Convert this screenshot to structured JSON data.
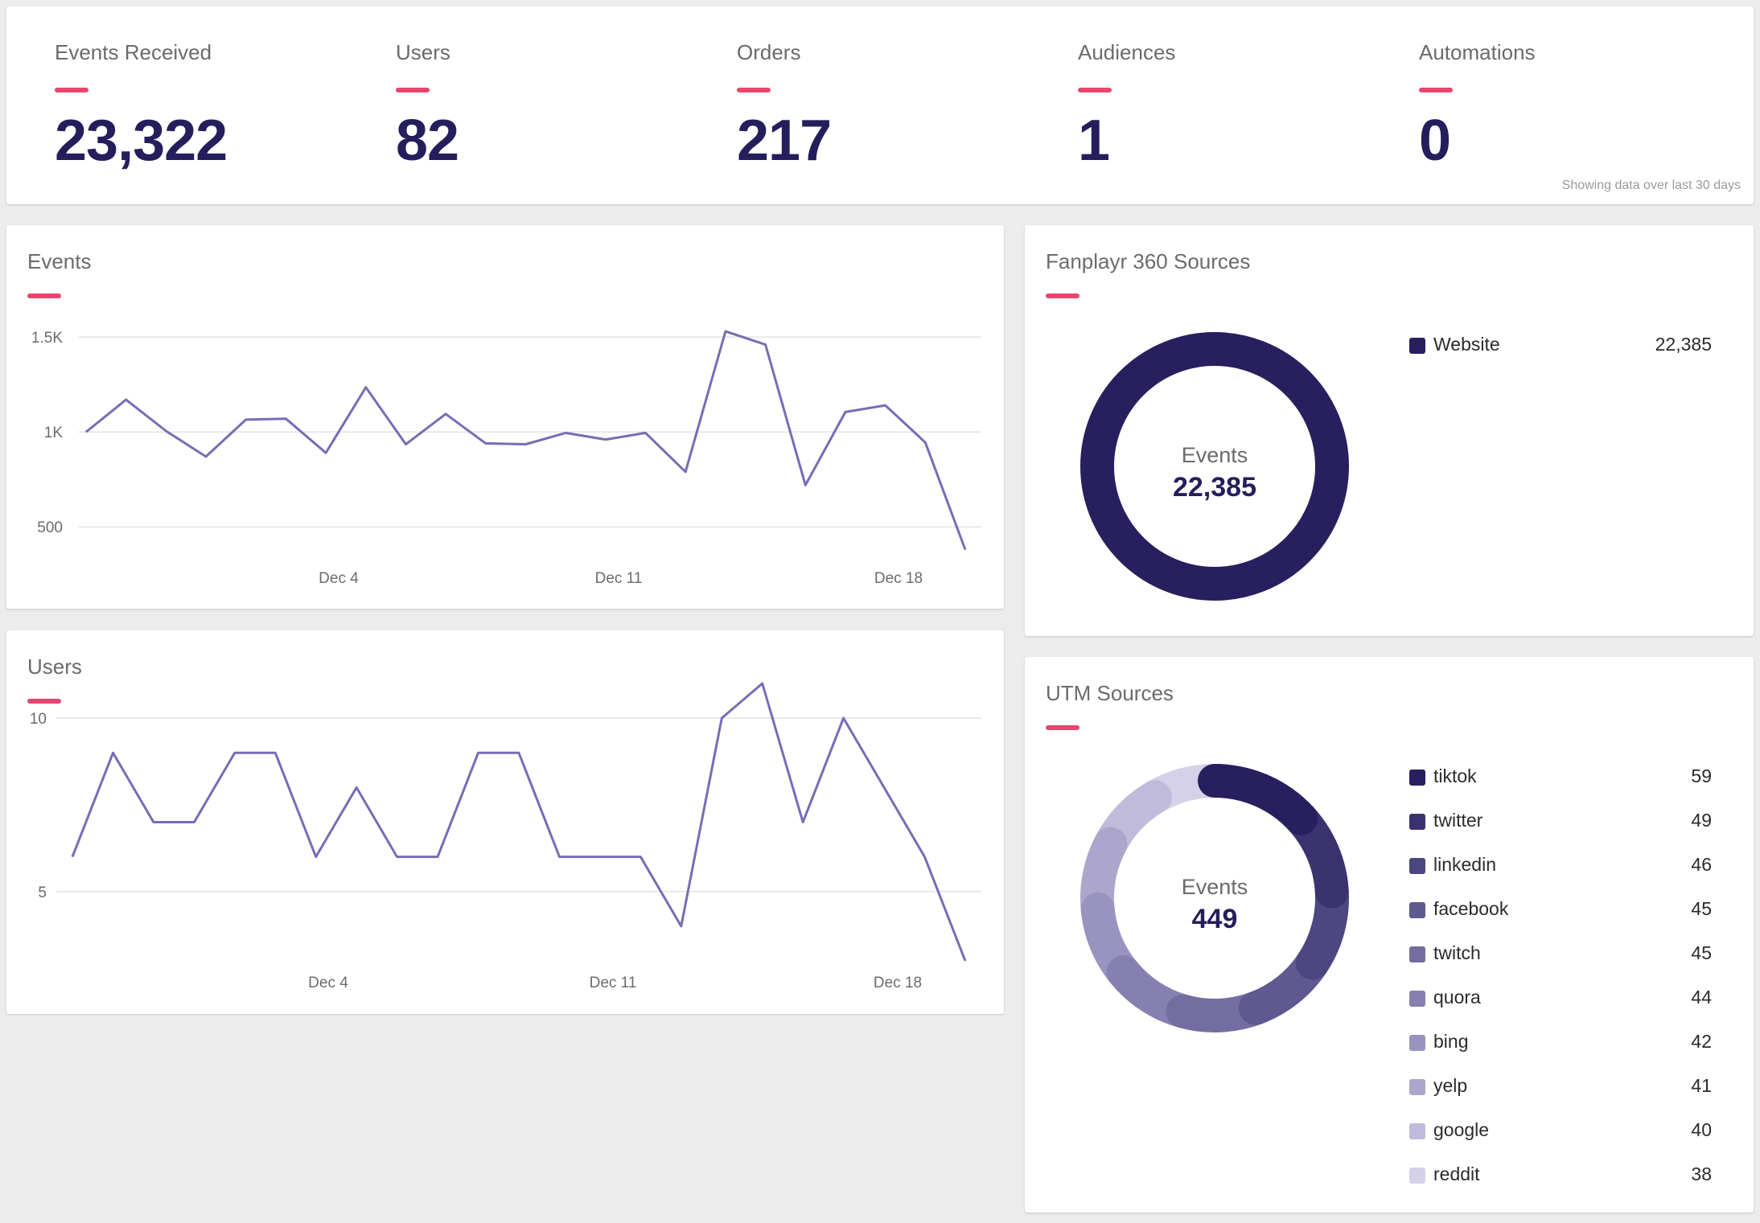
{
  "stats": [
    {
      "label": "Events Received",
      "value": "23,322"
    },
    {
      "label": "Users",
      "value": "82"
    },
    {
      "label": "Orders",
      "value": "217"
    },
    {
      "label": "Audiences",
      "value": "1"
    },
    {
      "label": "Automations",
      "value": "0"
    }
  ],
  "stats_footnote": "Showing data over last 30 days",
  "colors": {
    "accent": "#e8466e",
    "value_text": "#241e5c",
    "line": "#7b6bb5",
    "donut_primary": "#271f5e",
    "utm_palette": [
      "#271f5e",
      "#3a3370",
      "#4c4681",
      "#5f5991",
      "#736da1",
      "#8680b0",
      "#9993bf",
      "#aca6cd",
      "#c0bbdb",
      "#d4d1e8"
    ]
  },
  "events_card": {
    "title": "Events",
    "chart_data": {
      "type": "line",
      "x_tick_labels": [
        "Dec 4",
        "Dec 11",
        "Dec 18"
      ],
      "y_tick_labels": [
        "1.5K",
        "1K",
        "500"
      ],
      "y_ticks": [
        1500,
        1000,
        500
      ],
      "ylim": [
        340,
        1560
      ],
      "series": [
        {
          "values": [
            1000,
            1170,
            1005,
            870,
            1065,
            1070,
            890,
            1235,
            935,
            1095,
            940,
            935,
            995,
            960,
            995,
            790,
            1530,
            1460,
            720,
            1105,
            1140,
            945,
            380
          ]
        }
      ]
    }
  },
  "users_card": {
    "title": "Users",
    "chart_data": {
      "type": "line",
      "x_tick_labels": [
        "Dec 4",
        "Dec 11",
        "Dec 18"
      ],
      "y_tick_labels": [
        "10",
        "5"
      ],
      "y_ticks": [
        10,
        5
      ],
      "ylim": [
        3,
        11
      ],
      "series": [
        {
          "values": [
            6,
            9,
            7,
            7,
            9,
            9,
            6,
            8,
            6,
            6,
            9,
            9,
            6,
            6,
            6,
            4,
            10,
            11,
            7,
            10,
            8,
            6,
            3
          ]
        }
      ]
    }
  },
  "fan_card": {
    "title": "Fanplayr 360 Sources",
    "center_label": "Events",
    "center_value": "22,385",
    "chart_data": {
      "type": "pie",
      "categories": [
        "Website"
      ],
      "values": [
        22385
      ]
    },
    "legend": [
      {
        "label": "Website",
        "value": "22,385"
      }
    ]
  },
  "utm_card": {
    "title": "UTM Sources",
    "center_label": "Events",
    "center_value": "449",
    "chart_data": {
      "type": "pie",
      "categories": [
        "tiktok",
        "twitter",
        "linkedin",
        "facebook",
        "twitch",
        "quora",
        "bing",
        "yelp",
        "google",
        "reddit"
      ],
      "values": [
        59,
        49,
        46,
        45,
        45,
        44,
        42,
        41,
        40,
        38
      ]
    },
    "legend": [
      {
        "label": "tiktok",
        "value": "59"
      },
      {
        "label": "twitter",
        "value": "49"
      },
      {
        "label": "linkedin",
        "value": "46"
      },
      {
        "label": "facebook",
        "value": "45"
      },
      {
        "label": "twitch",
        "value": "45"
      },
      {
        "label": "quora",
        "value": "44"
      },
      {
        "label": "bing",
        "value": "42"
      },
      {
        "label": "yelp",
        "value": "41"
      },
      {
        "label": "google",
        "value": "40"
      },
      {
        "label": "reddit",
        "value": "38"
      }
    ]
  }
}
